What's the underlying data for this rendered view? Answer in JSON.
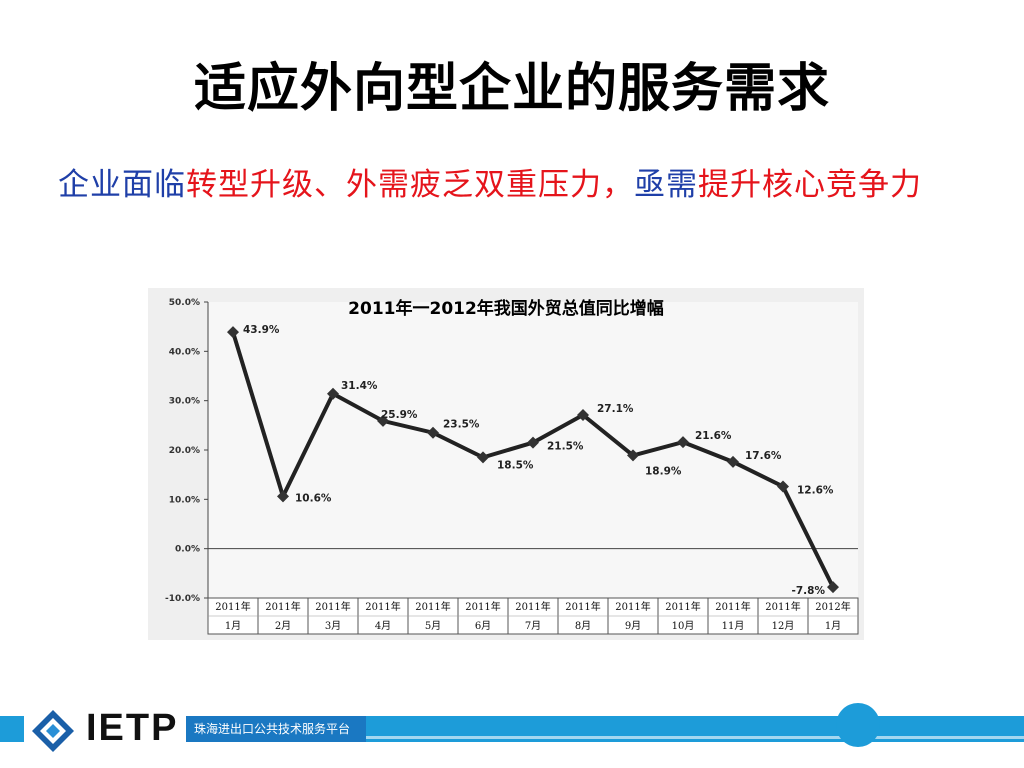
{
  "slide": {
    "title": "适应外向型企业的服务需求",
    "subtitle_parts": [
      {
        "text": "企业面临",
        "color": "blue"
      },
      {
        "text": "转型升级、外需疲乏双重压力，",
        "color": "red"
      },
      {
        "text": "亟需",
        "color": "blue"
      },
      {
        "text": "提升核心竞争力",
        "color": "red"
      }
    ]
  },
  "footer": {
    "logo_text": "IETP",
    "platform_label": "珠海进出口公共技术服务平台"
  },
  "chart_data": {
    "type": "line",
    "title": "2011年一2012年我国外贸总值同比增幅",
    "categories": [
      [
        "2011年",
        "1月"
      ],
      [
        "2011年",
        "2月"
      ],
      [
        "2011年",
        "3月"
      ],
      [
        "2011年",
        "4月"
      ],
      [
        "2011年",
        "5月"
      ],
      [
        "2011年",
        "6月"
      ],
      [
        "2011年",
        "7月"
      ],
      [
        "2011年",
        "8月"
      ],
      [
        "2011年",
        "9月"
      ],
      [
        "2011年",
        "10月"
      ],
      [
        "2011年",
        "11月"
      ],
      [
        "2011年",
        "12月"
      ],
      [
        "2012年",
        "1月"
      ]
    ],
    "values": [
      43.9,
      10.6,
      31.4,
      25.9,
      23.5,
      18.5,
      21.5,
      27.1,
      18.9,
      21.6,
      17.6,
      12.6,
      -7.8
    ],
    "data_labels": [
      "43.9%",
      "10.6%",
      "31.4%",
      "25.9%",
      "23.5%",
      "18.5%",
      "21.5%",
      "27.1%",
      "18.9%",
      "21.6%",
      "17.6%",
      "12.6%",
      "-7.8%"
    ],
    "yticks": [
      "50.0%",
      "40.0%",
      "30.0%",
      "20.0%",
      "10.0%",
      "0.0%",
      "-10.0%"
    ],
    "ytick_values": [
      50,
      40,
      30,
      20,
      10,
      0,
      -10
    ],
    "ylim": [
      -10,
      50
    ],
    "grid": false,
    "line_color": "#222222"
  }
}
